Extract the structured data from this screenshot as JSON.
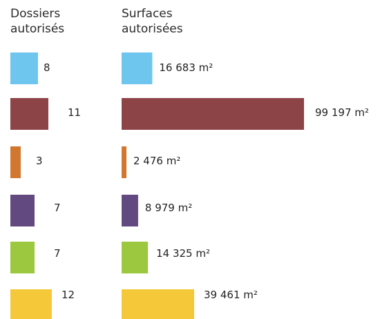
{
  "chart_data": {
    "type": "bar",
    "orientation": "horizontal",
    "groups": [
      {
        "title_lines": [
          "Dossiers",
          "autorisés"
        ],
        "values": [
          8,
          11,
          3,
          7,
          7,
          12
        ],
        "labels": [
          "8",
          "11",
          "3",
          "7",
          "7",
          "12"
        ]
      },
      {
        "title_lines": [
          "Surfaces",
          "autorisées"
        ],
        "values": [
          16683,
          99197,
          2476,
          8979,
          14325,
          39461
        ],
        "labels": [
          "16 683 m²",
          "99 197 m²",
          "2 476 m²",
          "8 979 m²",
          "14 325 m²",
          "39 461 m²"
        ]
      }
    ],
    "colors": [
      "#6ec6ef",
      "#8c4447",
      "#d2772f",
      "#62497f",
      "#9bc83e",
      "#f5c83a"
    ],
    "grid": false,
    "legend": "none"
  }
}
